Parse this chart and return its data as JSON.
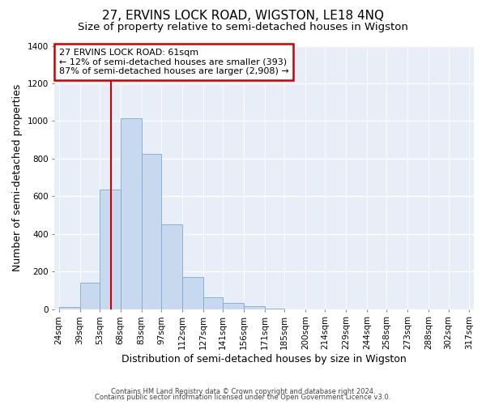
{
  "title": "27, ERVINS LOCK ROAD, WIGSTON, LE18 4NQ",
  "subtitle": "Size of property relative to semi-detached houses in Wigston",
  "xlabel": "Distribution of semi-detached houses by size in Wigston",
  "ylabel": "Number of semi-detached properties",
  "footer_line1": "Contains HM Land Registry data © Crown copyright and database right 2024.",
  "footer_line2": "Contains public sector information licensed under the Open Government Licence v3.0.",
  "bin_edges": [
    24,
    39,
    53,
    68,
    83,
    97,
    112,
    127,
    141,
    156,
    171,
    185,
    200,
    214,
    229,
    244,
    258,
    273,
    288,
    302,
    317
  ],
  "bin_labels": [
    "24sqm",
    "39sqm",
    "53sqm",
    "68sqm",
    "83sqm",
    "97sqm",
    "112sqm",
    "127sqm",
    "141sqm",
    "156sqm",
    "171sqm",
    "185sqm",
    "200sqm",
    "214sqm",
    "229sqm",
    "244sqm",
    "258sqm",
    "273sqm",
    "288sqm",
    "302sqm",
    "317sqm"
  ],
  "counts": [
    10,
    140,
    635,
    1015,
    825,
    450,
    170,
    65,
    35,
    15,
    5,
    0,
    0,
    0,
    0,
    0,
    0,
    0,
    0,
    0
  ],
  "bar_color": "#c8d8ee",
  "bar_edge_color": "#7aabcf",
  "vline_x": 61,
  "vline_color": "#cc0000",
  "annotation_title": "27 ERVINS LOCK ROAD: 61sqm",
  "annotation_line1": "← 12% of semi-detached houses are smaller (393)",
  "annotation_line2": "87% of semi-detached houses are larger (2,908) →",
  "annotation_box_color": "#cc0000",
  "ylim": [
    0,
    1400
  ],
  "yticks": [
    0,
    200,
    400,
    600,
    800,
    1000,
    1200,
    1400
  ],
  "bg_color": "#ffffff",
  "plot_bg_color": "#e8eef8",
  "grid_color": "#ffffff",
  "title_fontsize": 11,
  "subtitle_fontsize": 9.5,
  "axis_label_fontsize": 9,
  "tick_fontsize": 7.5,
  "annotation_fontsize": 8.0
}
